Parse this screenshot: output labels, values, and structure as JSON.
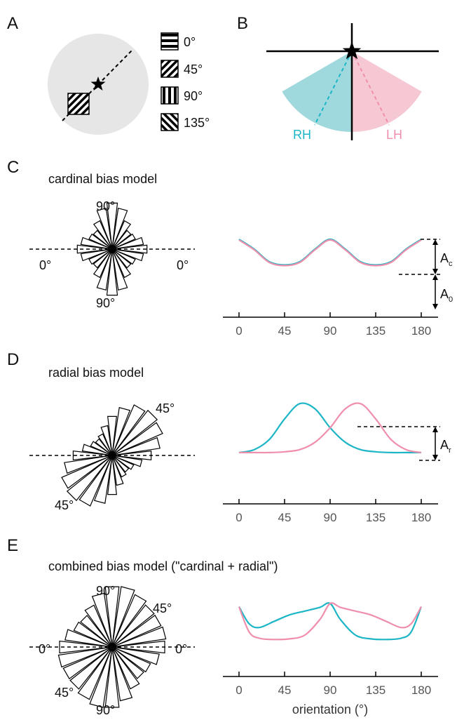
{
  "colors": {
    "rh": "#1db6c7",
    "lh": "#ef8fac",
    "rh_fill": "#9fd8dd",
    "lh_fill": "#f6c8d4",
    "aperture": "#e6e6e6"
  },
  "panels": {
    "A": {
      "letter": "A",
      "legend": [
        "0°",
        "45°",
        "90°",
        "135°"
      ]
    },
    "B": {
      "letter": "B",
      "rh_label": "RH",
      "lh_label": "LH"
    },
    "C": {
      "letter": "C",
      "title": "cardinal bias model",
      "rose_labels": {
        "top": "90°",
        "bottom": "90°",
        "left": "0°",
        "right": "0°"
      },
      "amp_c": "A",
      "amp_c_sub": "c",
      "amp_0": "A",
      "amp_0_sub": "0"
    },
    "D": {
      "letter": "D",
      "title": "radial bias model",
      "rose_labels": {
        "top": "45°",
        "bottom": "45°"
      },
      "amp_r": "A",
      "amp_r_sub": "r"
    },
    "E": {
      "letter": "E",
      "title": "combined bias model (\"cardinal + radial\")",
      "rose_labels": {
        "top": "90°",
        "upper_right": "45°",
        "left": "0°",
        "right": "0°",
        "lower_left": "45°",
        "bottom": "90°"
      },
      "xlabel": "orientation (°)"
    }
  },
  "chart_data": [
    {
      "type": "line",
      "panel": "C",
      "x": [
        0,
        15,
        30,
        45,
        60,
        75,
        90,
        105,
        120,
        135,
        150,
        165,
        180
      ],
      "xticks": [
        "0",
        "45",
        "90",
        "135",
        "180"
      ],
      "xlim": [
        0,
        180
      ],
      "ylim": [
        0,
        1
      ],
      "series": [
        {
          "color": "#1db6c7",
          "values": [
            1.0,
            0.72,
            0.36,
            0.27,
            0.36,
            0.72,
            1.0,
            0.72,
            0.36,
            0.27,
            0.36,
            0.72,
            1.0
          ]
        },
        {
          "color": "#ef8fac",
          "values": [
            0.98,
            0.7,
            0.34,
            0.25,
            0.34,
            0.7,
            0.98,
            0.7,
            0.34,
            0.25,
            0.34,
            0.7,
            0.98
          ]
        }
      ]
    },
    {
      "type": "line",
      "panel": "D",
      "x": [
        0,
        15,
        30,
        45,
        60,
        75,
        90,
        105,
        120,
        135,
        150,
        165,
        180
      ],
      "xticks": [
        "0",
        "45",
        "90",
        "135",
        "180"
      ],
      "xlim": [
        0,
        180
      ],
      "ylim": [
        0,
        1
      ],
      "series": [
        {
          "color": "#1db6c7",
          "values": [
            0.28,
            0.32,
            0.46,
            0.74,
            0.95,
            0.88,
            0.62,
            0.42,
            0.32,
            0.29,
            0.28,
            0.28,
            0.28
          ]
        },
        {
          "color": "#ef8fac",
          "values": [
            0.28,
            0.28,
            0.28,
            0.29,
            0.32,
            0.42,
            0.62,
            0.88,
            0.95,
            0.74,
            0.46,
            0.32,
            0.28
          ]
        }
      ]
    },
    {
      "type": "line",
      "panel": "E",
      "x": [
        0,
        10,
        20,
        35,
        50,
        65,
        80,
        90,
        100,
        115,
        130,
        145,
        160,
        170,
        180
      ],
      "xticks": [
        "0",
        "45",
        "90",
        "135",
        "180"
      ],
      "xlim": [
        0,
        180
      ],
      "ylim": [
        0,
        1
      ],
      "series": [
        {
          "color": "#1db6c7",
          "values": [
            0.95,
            0.68,
            0.62,
            0.72,
            0.82,
            0.88,
            0.94,
            1.0,
            0.75,
            0.5,
            0.44,
            0.43,
            0.45,
            0.55,
            0.95
          ]
        },
        {
          "color": "#ef8fac",
          "values": [
            0.95,
            0.55,
            0.45,
            0.43,
            0.44,
            0.5,
            0.75,
            1.0,
            0.94,
            0.88,
            0.82,
            0.72,
            0.62,
            0.68,
            0.95
          ]
        }
      ]
    }
  ]
}
